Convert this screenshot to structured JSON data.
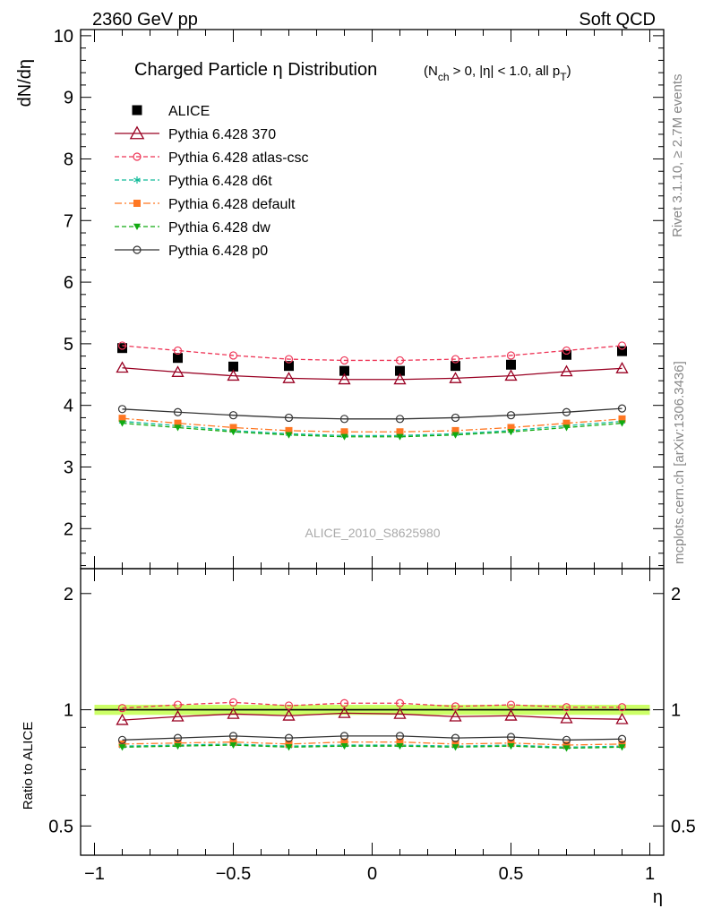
{
  "header": {
    "left": "2360 GeV pp",
    "right": "Soft QCD"
  },
  "side_labels": {
    "rivet": "Rivet 3.1.10, ≥ 2.7M events",
    "mcplots": "mcplots.cern.ch [arXiv:1306.3436]"
  },
  "watermark": "ALICE_2010_S8625980",
  "colors": {
    "alice": "#000000",
    "p370": "#990022",
    "atlas_csc": "#ee3355",
    "d6t": "#11bb99",
    "default": "#ff7722",
    "dw": "#11aa11",
    "p0": "#333333",
    "band": "#ccff66"
  },
  "chart_data": [
    {
      "type": "line",
      "title": {
        "main": "Charged Particle η Distribution",
        "cond_open": "(N",
        "cond_sub1": "ch",
        "cond_mid": " > 0, |η| < 1.0, all p",
        "cond_sub2": "T",
        "cond_close": ")"
      },
      "ylabel": "dN/dη",
      "xlim": [
        -1.05,
        1.05
      ],
      "ylim": [
        1.35,
        10.1
      ],
      "yticks": [
        2,
        3,
        4,
        5,
        6,
        7,
        8,
        9,
        10
      ],
      "ytick_labels": [
        "2",
        "3",
        "4",
        "5",
        "6",
        "7",
        "8",
        "9",
        "10"
      ],
      "x": [
        -0.9,
        -0.7,
        -0.5,
        -0.3,
        -0.1,
        0.1,
        0.3,
        0.5,
        0.7,
        0.9
      ],
      "legend_position": "top-left",
      "series": [
        {
          "key": "alice",
          "name": "ALICE",
          "marker": "square-filled",
          "line": "none",
          "values": [
            4.93,
            4.77,
            4.63,
            4.64,
            4.56,
            4.56,
            4.64,
            4.66,
            4.82,
            4.88
          ]
        },
        {
          "key": "p370",
          "name": "Pythia 6.428 370",
          "marker": "triangle-open",
          "line": "solid",
          "values": [
            4.61,
            4.54,
            4.48,
            4.44,
            4.42,
            4.42,
            4.44,
            4.48,
            4.55,
            4.6
          ]
        },
        {
          "key": "atlas_csc",
          "name": "Pythia 6.428 atlas-csc",
          "marker": "circle-open",
          "line": "dashed",
          "values": [
            4.97,
            4.89,
            4.81,
            4.75,
            4.73,
            4.73,
            4.75,
            4.81,
            4.89,
            4.97
          ]
        },
        {
          "key": "d6t",
          "name": "Pythia 6.428 d6t",
          "marker": "star",
          "line": "dashed",
          "values": [
            3.74,
            3.67,
            3.59,
            3.54,
            3.51,
            3.51,
            3.54,
            3.59,
            3.67,
            3.74
          ]
        },
        {
          "key": "default",
          "name": "Pythia 6.428 default",
          "marker": "square-filled",
          "line": "dashdot",
          "values": [
            3.79,
            3.71,
            3.64,
            3.59,
            3.57,
            3.57,
            3.59,
            3.64,
            3.71,
            3.78
          ]
        },
        {
          "key": "dw",
          "name": "Pythia 6.428 dw",
          "marker": "triangle-down-filled",
          "line": "dashed",
          "values": [
            3.71,
            3.64,
            3.57,
            3.52,
            3.49,
            3.49,
            3.52,
            3.57,
            3.64,
            3.71
          ]
        },
        {
          "key": "p0",
          "name": "Pythia 6.428 p0",
          "marker": "circle-open",
          "line": "solid",
          "values": [
            3.94,
            3.89,
            3.84,
            3.8,
            3.78,
            3.78,
            3.8,
            3.84,
            3.89,
            3.95
          ]
        }
      ]
    },
    {
      "type": "line",
      "ylabel": "Ratio to ALICE",
      "xlabel": "η",
      "xlim": [
        -1.05,
        1.05
      ],
      "ylim": [
        0.42,
        2.32
      ],
      "log_y": true,
      "yticks": [
        0.5,
        1,
        2
      ],
      "ytick_labels": [
        "0.5",
        "1",
        "2"
      ],
      "xticks": [
        -1,
        -0.5,
        0,
        0.5,
        1
      ],
      "xtick_labels": [
        "−1",
        "−0.5",
        "0",
        "0.5",
        "1"
      ],
      "x": [
        -0.9,
        -0.7,
        -0.5,
        -0.3,
        -0.1,
        0.1,
        0.3,
        0.5,
        0.7,
        0.9
      ],
      "band": {
        "lower": 0.97,
        "upper": 1.03
      },
      "series": [
        {
          "key": "p370",
          "name": "Pythia 6.428 370",
          "values": [
            0.94,
            0.96,
            0.975,
            0.965,
            0.98,
            0.975,
            0.96,
            0.965,
            0.95,
            0.945
          ]
        },
        {
          "key": "atlas_csc",
          "name": "Pythia 6.428 atlas-csc",
          "values": [
            1.01,
            1.03,
            1.045,
            1.025,
            1.04,
            1.04,
            1.02,
            1.03,
            1.015,
            1.015
          ]
        },
        {
          "key": "d6t",
          "name": "Pythia 6.428 d6t",
          "values": [
            0.805,
            0.81,
            0.815,
            0.805,
            0.81,
            0.81,
            0.805,
            0.81,
            0.8,
            0.805
          ]
        },
        {
          "key": "default",
          "name": "Pythia 6.428 default",
          "values": [
            0.815,
            0.82,
            0.825,
            0.815,
            0.825,
            0.825,
            0.815,
            0.82,
            0.81,
            0.815
          ]
        },
        {
          "key": "dw",
          "name": "Pythia 6.428 dw",
          "values": [
            0.8,
            0.805,
            0.81,
            0.8,
            0.805,
            0.805,
            0.8,
            0.805,
            0.795,
            0.8
          ]
        },
        {
          "key": "p0",
          "name": "Pythia 6.428 p0",
          "values": [
            0.835,
            0.845,
            0.855,
            0.845,
            0.855,
            0.855,
            0.845,
            0.85,
            0.835,
            0.84
          ]
        }
      ]
    }
  ]
}
